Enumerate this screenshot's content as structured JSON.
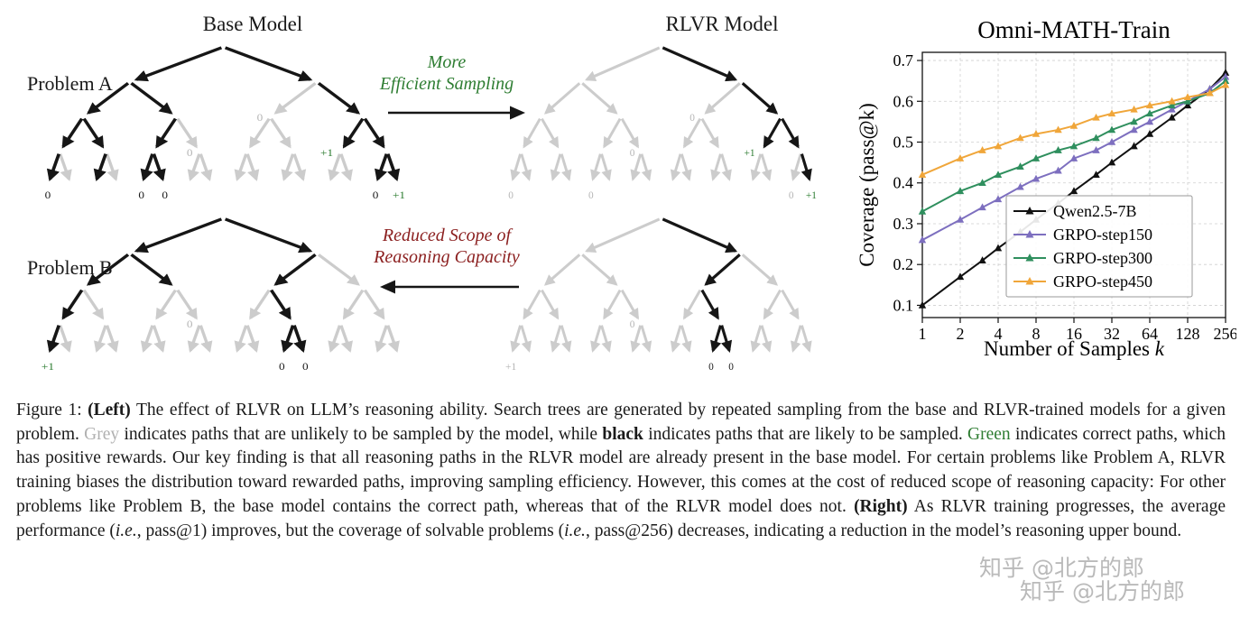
{
  "figure": {
    "panels": {
      "base_model_title": "Base Model",
      "rlvr_model_title": "RLVR Model",
      "problem_a_label": "Problem A",
      "problem_b_label": "Problem B",
      "efficient_arrow_line1": "More",
      "efficient_arrow_line2": "Efficient Sampling",
      "reduced_arrow_line1": "Reduced Scope of",
      "reduced_arrow_line2": "Reasoning Capacity"
    },
    "edge_colors": {
      "black": "#161616",
      "grey": "#cccccc"
    },
    "label_colors": {
      "dark": "#1a1a1a",
      "grey": "#b5b5b5",
      "green": "#2e7d32"
    },
    "trees": {
      "problem_a_base": {
        "black_edges": [
          "1-2",
          "1-3",
          "2-4",
          "2-5",
          "4-8",
          "4-9",
          "8-16",
          "9-18",
          "5-10",
          "10-20",
          "10-21",
          "3-7",
          "7-14",
          "7-15",
          "15-30",
          "15-31"
        ],
        "labels": [
          {
            "n": 16,
            "t": "0",
            "c": "dark"
          },
          {
            "n": 20,
            "t": "0",
            "c": "dark"
          },
          {
            "n": 21,
            "t": "0",
            "c": "dark"
          },
          {
            "n": 30,
            "t": "0",
            "c": "dark"
          },
          {
            "n": 31,
            "t": "+1",
            "c": "green"
          },
          {
            "n": 14,
            "t": "+1",
            "c": "green"
          },
          {
            "n": 11,
            "t": "0",
            "c": "grey"
          },
          {
            "n": 6,
            "t": "0",
            "c": "grey"
          }
        ]
      },
      "problem_a_rlvr": {
        "black_edges": [
          "1-3",
          "3-7",
          "7-14",
          "7-15",
          "15-31"
        ],
        "labels": [
          {
            "n": 16,
            "t": "0",
            "c": "grey"
          },
          {
            "n": 20,
            "t": "0",
            "c": "grey"
          },
          {
            "n": 30,
            "t": "0",
            "c": "grey"
          },
          {
            "n": 11,
            "t": "0",
            "c": "grey"
          },
          {
            "n": 6,
            "t": "0",
            "c": "grey"
          },
          {
            "n": 14,
            "t": "+1",
            "c": "green"
          },
          {
            "n": 31,
            "t": "+1",
            "c": "green"
          }
        ]
      },
      "problem_b_base": {
        "black_edges": [
          "1-2",
          "1-3",
          "2-4",
          "2-5",
          "4-8",
          "8-16",
          "3-6",
          "6-13",
          "13-26",
          "13-27"
        ],
        "labels": [
          {
            "n": 16,
            "t": "+1",
            "c": "green"
          },
          {
            "n": 26,
            "t": "0",
            "c": "dark"
          },
          {
            "n": 27,
            "t": "0",
            "c": "dark"
          },
          {
            "n": 11,
            "t": "0",
            "c": "grey"
          }
        ]
      },
      "problem_b_rlvr": {
        "black_edges": [
          "1-3",
          "3-6",
          "6-13",
          "13-26",
          "13-27"
        ],
        "labels": [
          {
            "n": 16,
            "t": "+1",
            "c": "grey"
          },
          {
            "n": 26,
            "t": "0",
            "c": "dark"
          },
          {
            "n": 27,
            "t": "0",
            "c": "dark"
          },
          {
            "n": 11,
            "t": "0",
            "c": "grey"
          }
        ]
      }
    }
  },
  "chart_data": {
    "type": "line",
    "title": "Omni-MATH-Train",
    "xlabel": "Number of Samples",
    "xlabel_var": "k",
    "ylabel": "Coverage (pass@k)",
    "xscale": "log2",
    "grid": "dashed",
    "legend_position": "lower right",
    "x": [
      1,
      2,
      3,
      4,
      6,
      8,
      12,
      16,
      24,
      32,
      48,
      64,
      96,
      128,
      192,
      256
    ],
    "xticks": [
      1,
      2,
      4,
      8,
      16,
      32,
      64,
      128,
      256
    ],
    "yticks": [
      0.1,
      0.2,
      0.3,
      0.4,
      0.5,
      0.6,
      0.7
    ],
    "ylim": [
      0.07,
      0.72
    ],
    "series": [
      {
        "name": "Qwen2.5-7B",
        "color": "#111111",
        "marker": "triangle",
        "values": [
          0.1,
          0.17,
          0.21,
          0.24,
          0.28,
          0.31,
          0.35,
          0.38,
          0.42,
          0.45,
          0.49,
          0.52,
          0.56,
          0.59,
          0.63,
          0.67
        ]
      },
      {
        "name": "GRPO-step150",
        "color": "#7d6fbf",
        "marker": "triangle",
        "values": [
          0.26,
          0.31,
          0.34,
          0.36,
          0.39,
          0.41,
          0.43,
          0.46,
          0.48,
          0.5,
          0.53,
          0.55,
          0.58,
          0.6,
          0.63,
          0.66
        ]
      },
      {
        "name": "GRPO-step300",
        "color": "#2f8f5e",
        "marker": "triangle",
        "values": [
          0.33,
          0.38,
          0.4,
          0.42,
          0.44,
          0.46,
          0.48,
          0.49,
          0.51,
          0.53,
          0.55,
          0.57,
          0.59,
          0.6,
          0.62,
          0.65
        ]
      },
      {
        "name": "GRPO-step450",
        "color": "#f0a63a",
        "marker": "triangle",
        "values": [
          0.42,
          0.46,
          0.48,
          0.49,
          0.51,
          0.52,
          0.53,
          0.54,
          0.56,
          0.57,
          0.58,
          0.59,
          0.6,
          0.61,
          0.62,
          0.64
        ]
      }
    ]
  },
  "caption": {
    "segments": [
      {
        "t": "Figure 1: ",
        "s": "normal"
      },
      {
        "t": "(Left)",
        "s": "bold"
      },
      {
        "t": " The effect of RLVR on LLM’s reasoning ability. Search trees are generated by repeated sampling from the base and RLVR-trained models for a given problem. ",
        "s": "normal"
      },
      {
        "t": "Grey",
        "s": "grey"
      },
      {
        "t": " indicates paths that are unlikely to be sampled by the model, while ",
        "s": "normal"
      },
      {
        "t": "black",
        "s": "bold"
      },
      {
        "t": " indicates paths that are likely to be sampled. ",
        "s": "normal"
      },
      {
        "t": "Green",
        "s": "green"
      },
      {
        "t": " indicates correct paths, which has positive rewards. Our key finding is that all reasoning paths in the RLVR model are already present in the base model. For certain problems like Problem A, RLVR training biases the distribution toward rewarded paths, improving sampling efficiency. However, this comes at the cost of reduced scope of reasoning capacity: For other problems like Problem B, the base model contains the correct path, whereas that of the RLVR model does not. ",
        "s": "normal"
      },
      {
        "t": "(Right)",
        "s": "bold"
      },
      {
        "t": " As RLVR training progresses, the average performance (",
        "s": "normal"
      },
      {
        "t": "i.e.",
        "s": "italic"
      },
      {
        "t": ", pass@1) improves, but the coverage of solvable problems (",
        "s": "normal"
      },
      {
        "t": "i.e.",
        "s": "italic"
      },
      {
        "t": ", pass@256) decreases, indicating a reduction in the model’s reasoning upper bound.",
        "s": "normal"
      }
    ]
  },
  "watermark": {
    "text": "知乎 @北方的郎"
  }
}
